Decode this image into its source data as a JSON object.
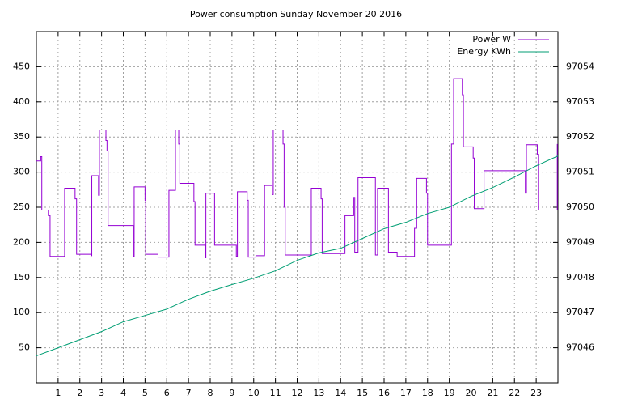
{
  "chart_data": {
    "type": "line",
    "title": "Power consumption Sunday November 20 2016",
    "xlim": [
      0,
      24
    ],
    "xticks": [
      1,
      2,
      3,
      4,
      5,
      6,
      7,
      8,
      9,
      10,
      11,
      12,
      13,
      14,
      15,
      16,
      17,
      18,
      19,
      20,
      21,
      22,
      23
    ],
    "ylim": [
      0,
      500
    ],
    "yticks": [
      50,
      100,
      150,
      200,
      250,
      300,
      350,
      400,
      450
    ],
    "y2lim": [
      97045,
      97055
    ],
    "y2ticks": [
      97046,
      97047,
      97048,
      97049,
      97050,
      97051,
      97052,
      97053,
      97054
    ],
    "grid": true,
    "legend": "top-right",
    "series": [
      {
        "name": "Power W",
        "color": "#9400d3",
        "x": [
          0,
          0.2,
          0.2,
          0.25,
          0.25,
          0.55,
          0.55,
          0.63,
          0.63,
          1.3,
          1.3,
          1.78,
          1.78,
          1.85,
          1.85,
          2.53,
          2.53,
          2.55,
          2.55,
          2.86,
          2.86,
          2.9,
          2.9,
          3.2,
          3.2,
          3.25,
          3.25,
          3.3,
          3.3,
          4.46,
          4.46,
          4.5,
          4.5,
          5.0,
          5.0,
          5.03,
          5.03,
          5.6,
          5.6,
          6.1,
          6.1,
          6.4,
          6.4,
          6.55,
          6.55,
          6.6,
          6.6,
          7.25,
          7.25,
          7.3,
          7.3,
          7.78,
          7.78,
          7.8,
          7.8,
          8.2,
          8.2,
          9.2,
          9.2,
          9.25,
          9.25,
          9.7,
          9.7,
          9.75,
          9.75,
          10.1,
          10.1,
          10.5,
          10.5,
          10.85,
          10.85,
          10.9,
          10.9,
          11.35,
          11.35,
          11.4,
          11.4,
          11.45,
          11.45,
          12.65,
          12.65,
          13.1,
          13.1,
          13.15,
          13.15,
          14.2,
          14.2,
          14.6,
          14.6,
          14.65,
          14.65,
          14.8,
          14.8,
          15.6,
          15.6,
          15.7,
          15.7,
          16.2,
          16.2,
          16.6,
          16.6,
          17.4,
          17.4,
          17.5,
          17.5,
          17.95,
          17.95,
          18.0,
          18.0,
          19.1,
          19.1,
          19.2,
          19.2,
          19.6,
          19.6,
          19.65,
          19.65,
          20.1,
          20.1,
          20.15,
          20.15,
          20.6,
          20.6,
          22.5,
          22.5,
          22.55,
          22.55,
          23.05,
          23.05,
          23.1,
          23.1,
          23.97,
          23.97
        ],
        "values": [
          316,
          316,
          322,
          322,
          246,
          246,
          238,
          238,
          180,
          180,
          277,
          277,
          262,
          262,
          183,
          183,
          181,
          181,
          295,
          295,
          267,
          267,
          360,
          360,
          345,
          345,
          330,
          330,
          224,
          224,
          180,
          180,
          279,
          279,
          260,
          260,
          183,
          183,
          179,
          179,
          274,
          274,
          360,
          360,
          340,
          340,
          284,
          284,
          258,
          258,
          196,
          196,
          178,
          178,
          270,
          270,
          196,
          196,
          180,
          180,
          272,
          272,
          260,
          260,
          179,
          179,
          181,
          181,
          281,
          281,
          268,
          268,
          360,
          360,
          340,
          340,
          250,
          250,
          182,
          182,
          277,
          277,
          262,
          262,
          184,
          184,
          238,
          238,
          264,
          264,
          186,
          186,
          292,
          292,
          182,
          182,
          277,
          277,
          186,
          186,
          180,
          180,
          220,
          220,
          291,
          291,
          270,
          270,
          196,
          196,
          340,
          340,
          433,
          433,
          410,
          410,
          336,
          336,
          320,
          320,
          248,
          248,
          302,
          302,
          270,
          270,
          339,
          339,
          325,
          325,
          246,
          246,
          340
        ]
      },
      {
        "name": "Energy KWh",
        "color": "#009e73",
        "axis": "y2",
        "x": [
          0,
          1,
          2,
          3,
          4,
          5,
          6,
          7,
          8,
          9,
          10,
          11,
          12,
          13,
          14,
          15,
          16,
          17,
          18,
          19,
          20,
          21,
          22,
          23,
          24
        ],
        "values": [
          97045.77,
          97046.0,
          97046.23,
          97046.46,
          97046.74,
          97046.92,
          97047.1,
          97047.38,
          97047.61,
          97047.8,
          97047.98,
          97048.19,
          97048.49,
          97048.7,
          97048.83,
          97049.11,
          97049.39,
          97049.57,
          97049.82,
          97050.0,
          97050.31,
          97050.56,
          97050.86,
          97051.18,
          97051.46
        ]
      }
    ]
  }
}
